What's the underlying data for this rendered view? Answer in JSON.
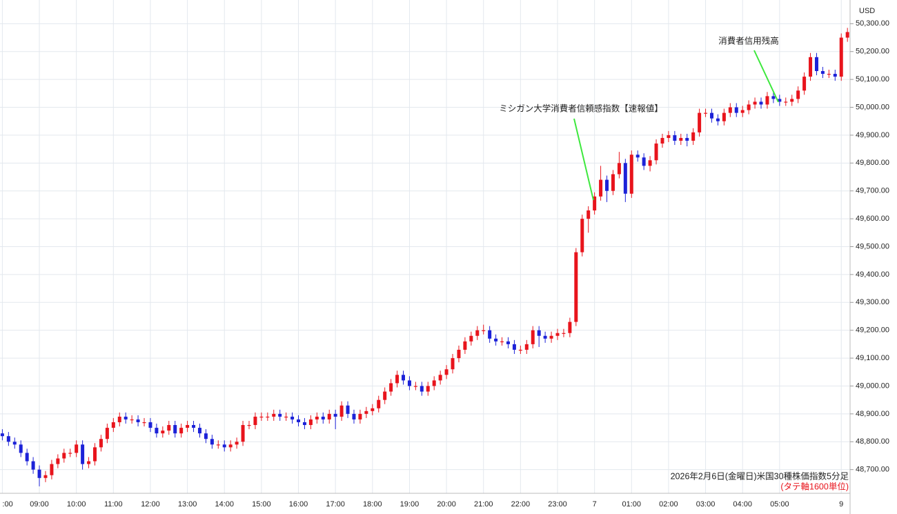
{
  "chart_data": {
    "type": "candlestick",
    "unit": "USD",
    "caption": "2026年2月6日(金曜日)米国30種株価指数5分足",
    "sub_caption": "(タテ軸1600単位)",
    "annotations": [
      "ミシガン大学消費者信頼感指数【速報値】",
      "消費者信用残高"
    ],
    "up_color": "#e8141c",
    "down_color": "#1c22d8",
    "grid": true,
    "ylim": [
      48615,
      50385
    ],
    "yticks": [
      {
        "value": 48700,
        "label": "48,700.00"
      },
      {
        "value": 48800,
        "label": "48,800.00"
      },
      {
        "value": 48900,
        "label": "48,900.00"
      },
      {
        "value": 49000,
        "label": "49,000.00"
      },
      {
        "value": 49100,
        "label": "49,100.00"
      },
      {
        "value": 49200,
        "label": "49,200.00"
      },
      {
        "value": 49300,
        "label": "49,300.00"
      },
      {
        "value": 49400,
        "label": "49,400.00"
      },
      {
        "value": 49500,
        "label": "49,500.00"
      },
      {
        "value": 49600,
        "label": "49,600.00"
      },
      {
        "value": 49700,
        "label": "49,700.00"
      },
      {
        "value": 49800,
        "label": "49,800.00"
      },
      {
        "value": 49900,
        "label": "49,900.00"
      },
      {
        "value": 50000,
        "label": "50,000.00"
      },
      {
        "value": 50100,
        "label": "50,100.00"
      },
      {
        "value": 50200,
        "label": "50,200.00"
      },
      {
        "value": 50300,
        "label": "50,300.00"
      }
    ],
    "categories": [
      ":00",
      null,
      null,
      null,
      null,
      null,
      "09:00",
      null,
      null,
      null,
      null,
      null,
      "10:00",
      null,
      null,
      null,
      null,
      null,
      "11:00",
      null,
      null,
      null,
      null,
      null,
      "12:00",
      null,
      null,
      null,
      null,
      null,
      "13:00",
      null,
      null,
      null,
      null,
      null,
      "14:00",
      null,
      null,
      null,
      null,
      null,
      "15:00",
      null,
      null,
      null,
      null,
      null,
      "16:00",
      null,
      null,
      null,
      null,
      null,
      "17:00",
      null,
      null,
      null,
      null,
      null,
      "18:00",
      null,
      null,
      null,
      null,
      null,
      "19:00",
      null,
      null,
      null,
      null,
      null,
      "20:00",
      null,
      null,
      null,
      null,
      null,
      "21:00",
      null,
      null,
      null,
      null,
      null,
      "22:00",
      null,
      null,
      null,
      null,
      null,
      "23:00",
      null,
      null,
      null,
      null,
      null,
      "7",
      null,
      null,
      null,
      null,
      null,
      "01:00",
      null,
      null,
      null,
      null,
      null,
      "02:00",
      null,
      null,
      null,
      null,
      null,
      "03:00",
      null,
      null,
      null,
      null,
      null,
      "04:00",
      null,
      null,
      null,
      null,
      null,
      "05:00",
      null,
      null,
      null,
      null,
      null,
      null,
      null,
      null,
      null,
      "9",
      null
    ],
    "open": [
      48830,
      48820,
      48800,
      48790,
      48760,
      48730,
      48700,
      48670,
      48680,
      48720,
      48740,
      48760,
      48760,
      48790,
      48720,
      48730,
      48780,
      48810,
      48850,
      48870,
      48890,
      48880,
      48880,
      48870,
      48870,
      48850,
      48830,
      48840,
      48860,
      48830,
      48850,
      48860,
      48850,
      48830,
      48810,
      48790,
      48790,
      48780,
      48790,
      48800,
      48860,
      48860,
      48890,
      48890,
      48890,
      48900,
      48890,
      48890,
      48880,
      48870,
      48860,
      48880,
      48890,
      48880,
      48900,
      48890,
      48930,
      48900,
      48880,
      48900,
      48910,
      48920,
      48950,
      48980,
      49010,
      49040,
      49020,
      49000,
      49000,
      48980,
      49000,
      49020,
      49040,
      49060,
      49100,
      49130,
      49160,
      49180,
      49200,
      49200,
      49170,
      49160,
      49160,
      49150,
      49130,
      49130,
      49150,
      49200,
      49180,
      49170,
      49180,
      49190,
      49190,
      49230,
      49480,
      49600,
      49630,
      49680,
      49740,
      49700,
      49760,
      49800,
      49690,
      49830,
      49820,
      49790,
      49810,
      49870,
      49890,
      49900,
      49880,
      49890,
      49880,
      49910,
      49980,
      49980,
      49960,
      49950,
      49980,
      50000,
      49980,
      49990,
      50010,
      50020,
      50010,
      50040,
      50030,
      50020,
      50020,
      50030,
      50060,
      50110,
      50180,
      50130,
      50120,
      50120,
      50110,
      50250
    ],
    "high": [
      48845,
      48835,
      48815,
      48805,
      48775,
      48745,
      48715,
      48695,
      48735,
      48755,
      48775,
      48775,
      48805,
      48805,
      48745,
      48795,
      48825,
      48865,
      48885,
      48905,
      48905,
      48895,
      48895,
      48885,
      48885,
      48865,
      48855,
      48875,
      48875,
      48865,
      48875,
      48875,
      48865,
      48845,
      48825,
      48805,
      48805,
      48805,
      48815,
      48875,
      48875,
      48905,
      48905,
      48905,
      48915,
      48915,
      48905,
      48905,
      48895,
      48885,
      48895,
      48905,
      48905,
      48915,
      48915,
      48945,
      48945,
      48915,
      48915,
      48925,
      48935,
      48965,
      48995,
      49025,
      49055,
      49055,
      49035,
      49015,
      49015,
      49015,
      49035,
      49055,
      49075,
      49115,
      49145,
      49175,
      49195,
      49215,
      49220,
      49215,
      49185,
      49175,
      49175,
      49165,
      49145,
      49165,
      49215,
      49215,
      49195,
      49195,
      49205,
      49205,
      49245,
      49495,
      49615,
      49645,
      49695,
      49790,
      49755,
      49775,
      49840,
      49815,
      49845,
      49845,
      49835,
      49825,
      49885,
      49905,
      49915,
      49915,
      49905,
      49905,
      49925,
      49995,
      49995,
      49995,
      49975,
      49995,
      50015,
      50015,
      50005,
      50025,
      50035,
      50035,
      50055,
      50055,
      50045,
      50035,
      50045,
      50075,
      50125,
      50195,
      50195,
      50145,
      50135,
      50135,
      50265,
      50285
    ],
    "low": [
      48805,
      48785,
      48775,
      48745,
      48715,
      48685,
      48640,
      48655,
      48665,
      48705,
      48725,
      48745,
      48745,
      48700,
      48705,
      48715,
      48765,
      48795,
      48835,
      48855,
      48865,
      48865,
      48855,
      48855,
      48835,
      48815,
      48815,
      48825,
      48815,
      48815,
      48835,
      48835,
      48815,
      48795,
      48775,
      48775,
      48765,
      48765,
      48775,
      48785,
      48845,
      48845,
      48875,
      48875,
      48875,
      48875,
      48875,
      48865,
      48855,
      48845,
      48845,
      48865,
      48865,
      48865,
      48845,
      48875,
      48885,
      48865,
      48865,
      48885,
      48895,
      48905,
      48935,
      48965,
      48995,
      49005,
      48985,
      48985,
      48965,
      48965,
      48985,
      49005,
      49025,
      49045,
      49085,
      49115,
      49145,
      49165,
      49185,
      49155,
      49145,
      49145,
      49135,
      49115,
      49115,
      49115,
      49135,
      49140,
      49155,
      49155,
      49165,
      49175,
      49175,
      49215,
      49465,
      49550,
      49615,
      49665,
      49660,
      49685,
      49745,
      49660,
      49675,
      49805,
      49775,
      49770,
      49795,
      49855,
      49875,
      49865,
      49865,
      49860,
      49865,
      49895,
      49965,
      49945,
      49935,
      49935,
      49965,
      49965,
      49965,
      49975,
      49995,
      49995,
      49995,
      50015,
      50005,
      50005,
      50005,
      50015,
      50045,
      50095,
      50115,
      50105,
      50105,
      50095,
      50095,
      50235
    ],
    "close": [
      48820,
      48800,
      48790,
      48760,
      48730,
      48700,
      48670,
      48680,
      48720,
      48740,
      48760,
      48760,
      48790,
      48720,
      48730,
      48780,
      48810,
      48850,
      48870,
      48890,
      48880,
      48880,
      48870,
      48870,
      48850,
      48830,
      48840,
      48860,
      48830,
      48850,
      48860,
      48850,
      48830,
      48810,
      48790,
      48790,
      48780,
      48790,
      48800,
      48860,
      48860,
      48890,
      48890,
      48890,
      48900,
      48890,
      48890,
      48880,
      48870,
      48860,
      48880,
      48890,
      48880,
      48900,
      48890,
      48930,
      48900,
      48880,
      48900,
      48910,
      48920,
      48950,
      48980,
      49010,
      49040,
      49020,
      49000,
      49000,
      48980,
      49000,
      49020,
      49040,
      49060,
      49100,
      49130,
      49160,
      49180,
      49200,
      49200,
      49170,
      49160,
      49160,
      49150,
      49130,
      49130,
      49150,
      49200,
      49180,
      49170,
      49180,
      49190,
      49190,
      49230,
      49480,
      49600,
      49630,
      49680,
      49740,
      49700,
      49760,
      49800,
      49690,
      49830,
      49820,
      49790,
      49810,
      49870,
      49890,
      49900,
      49880,
      49890,
      49880,
      49910,
      49980,
      49980,
      49960,
      49950,
      49980,
      50000,
      49980,
      49990,
      50010,
      50020,
      50010,
      50040,
      50030,
      50020,
      50020,
      50030,
      50060,
      50110,
      50180,
      50130,
      50120,
      50120,
      50110,
      50250,
      50270
    ]
  }
}
